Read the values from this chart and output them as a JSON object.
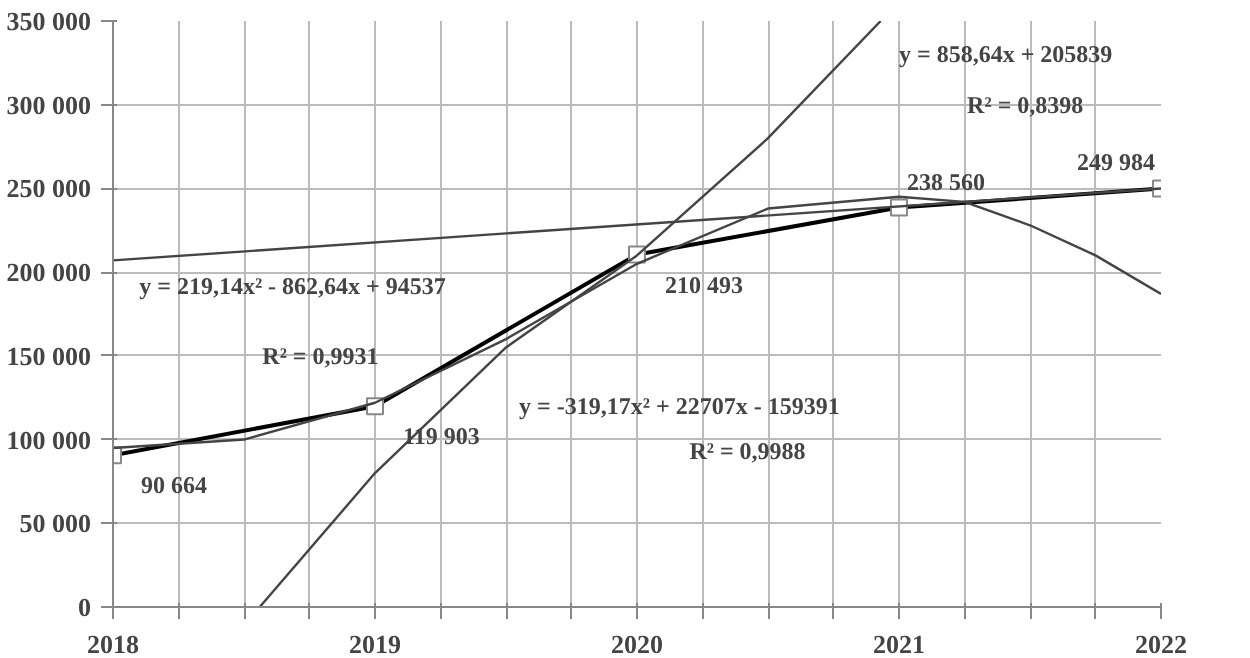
{
  "chart_data": {
    "type": "line",
    "x": [
      2018,
      2019,
      2020,
      2021,
      2022
    ],
    "series": [
      {
        "color": "#000000",
        "values": [
          90664,
          119903,
          210493,
          238560,
          249984
        ],
        "marker": "square",
        "data_labels": true
      },
      {
        "color": "#444444",
        "x": [
          2018,
          2022
        ],
        "values": [
          207000,
          250000
        ]
      },
      {
        "color": "#444444",
        "x": [
          2018.56,
          2019,
          2019.5,
          2020,
          2020.5,
          2020.93
        ],
        "values": [
          0,
          80000,
          155000,
          210000,
          280000,
          350000
        ]
      },
      {
        "color": "#444444",
        "x": [
          2018,
          2018.5,
          2019,
          2019.5,
          2020,
          2020.5,
          2021,
          2021.25,
          2021.5,
          2021.75,
          2022
        ],
        "values": [
          95000,
          100000,
          122000,
          160000,
          205000,
          238000,
          245000,
          242000,
          228000,
          210000,
          187000
        ]
      }
    ],
    "xlim": [
      2018,
      2022
    ],
    "ylim": [
      0,
      350000
    ],
    "xticks": [
      2018,
      {
        "value": 2018.25,
        "label": null
      },
      {
        "value": 2018.5,
        "label": null
      },
      {
        "value": 2018.75,
        "label": null
      },
      2019,
      {
        "value": 2019.25,
        "label": null
      },
      {
        "value": 2019.5,
        "label": null
      },
      {
        "value": 2019.75,
        "label": null
      },
      2020,
      {
        "value": 2020.25,
        "label": null
      },
      {
        "value": 2020.5,
        "label": null
      },
      {
        "value": 2020.75,
        "label": null
      },
      2021,
      {
        "value": 2021.25,
        "label": null
      },
      {
        "value": 2021.5,
        "label": null
      },
      {
        "value": 2021.75,
        "label": null
      },
      2022
    ],
    "yticks": [
      0,
      {
        "value": 50000,
        "label": "50 000"
      },
      {
        "value": 100000,
        "label": "100 000"
      },
      {
        "value": 150000,
        "label": "150 000"
      },
      {
        "value": 200000,
        "label": "200 000"
      },
      {
        "value": 250000,
        "label": "250 000"
      },
      {
        "value": 300000,
        "label": "300 000"
      },
      {
        "value": 350000,
        "label": "350 000"
      }
    ],
    "grid": true,
    "line_style": "solid",
    "annotations": [
      "y = 858,64x + 205839",
      "R² = 0,8398",
      "y = 219,14x² - 862,64x + 94537",
      "R² = 0,9931",
      "y = -319,17x² + 22707x - 159391",
      "R² = 0,9988"
    ]
  }
}
